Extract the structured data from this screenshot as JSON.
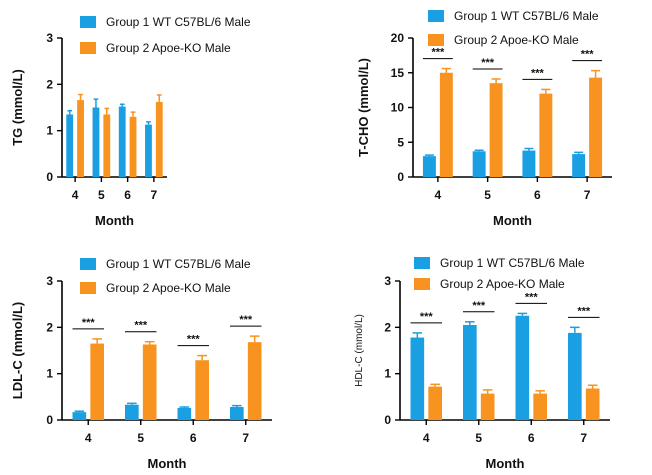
{
  "colors": {
    "series1": "#1a9fe3",
    "series2": "#f7931e",
    "axis": "#000000"
  },
  "legend": {
    "series1": "Group 1 WT C57BL/6 Male",
    "series2": "Group 2 Apoe-KO Male"
  },
  "chart_data": [
    {
      "type": "bar",
      "ylabel": "TG (mmol/L)",
      "xlabel": "Month",
      "categories": [
        "4",
        "5",
        "6",
        "7"
      ],
      "ylim": [
        0,
        3
      ],
      "yticks": [
        0,
        1,
        2,
        3
      ],
      "series": [
        {
          "name": "Group 1 WT C57BL/6 Male",
          "values": [
            1.35,
            1.5,
            1.52,
            1.13
          ],
          "errors": [
            0.08,
            0.18,
            0.05,
            0.06
          ]
        },
        {
          "name": "Group 2 Apoe-KO Male",
          "values": [
            1.66,
            1.35,
            1.3,
            1.62
          ],
          "errors": [
            0.12,
            0.13,
            0.1,
            0.15
          ]
        }
      ],
      "significance": [
        "",
        "",
        "",
        ""
      ]
    },
    {
      "type": "bar",
      "ylabel": "T-CHO (mmol/L)",
      "xlabel": "Month",
      "categories": [
        "4",
        "5",
        "6",
        "7"
      ],
      "ylim": [
        0,
        20
      ],
      "yticks": [
        0,
        5,
        10,
        15,
        20
      ],
      "series": [
        {
          "name": "Group 1 WT C57BL/6 Male",
          "values": [
            3.0,
            3.7,
            3.8,
            3.3
          ],
          "errors": [
            0.15,
            0.15,
            0.3,
            0.25
          ]
        },
        {
          "name": "Group 2 Apoe-KO Male",
          "values": [
            15.0,
            13.5,
            12.0,
            14.3
          ],
          "errors": [
            0.6,
            0.6,
            0.6,
            1.0
          ]
        }
      ],
      "significance": [
        "***",
        "***",
        "***",
        "***"
      ]
    },
    {
      "type": "bar",
      "ylabel": "LDL-C (mmol/L)",
      "xlabel": "Month",
      "categories": [
        "4",
        "5",
        "6",
        "7"
      ],
      "ylim": [
        0,
        3
      ],
      "yticks": [
        0,
        1,
        2,
        3
      ],
      "series": [
        {
          "name": "Group 1 WT C57BL/6 Male",
          "values": [
            0.17,
            0.33,
            0.26,
            0.28
          ],
          "errors": [
            0.02,
            0.03,
            0.02,
            0.03
          ]
        },
        {
          "name": "Group 2 Apoe-KO Male",
          "values": [
            1.65,
            1.63,
            1.29,
            1.68
          ],
          "errors": [
            0.1,
            0.06,
            0.1,
            0.13
          ]
        }
      ],
      "significance": [
        "***",
        "***",
        "***",
        "***"
      ]
    },
    {
      "type": "bar",
      "ylabel": "HDL-C (mmol/L)",
      "xlabel": "Month",
      "categories": [
        "4",
        "5",
        "6",
        "7"
      ],
      "ylim": [
        0,
        3
      ],
      "yticks": [
        0,
        1,
        2,
        3
      ],
      "series": [
        {
          "name": "Group 1 WT C57BL/6 Male",
          "values": [
            1.78,
            2.05,
            2.25,
            1.88
          ],
          "errors": [
            0.1,
            0.07,
            0.05,
            0.12
          ]
        },
        {
          "name": "Group 2 Apoe-KO Male",
          "values": [
            0.72,
            0.57,
            0.57,
            0.68
          ],
          "errors": [
            0.05,
            0.08,
            0.06,
            0.07
          ]
        }
      ],
      "significance": [
        "***",
        "***",
        "***",
        "***"
      ]
    }
  ]
}
